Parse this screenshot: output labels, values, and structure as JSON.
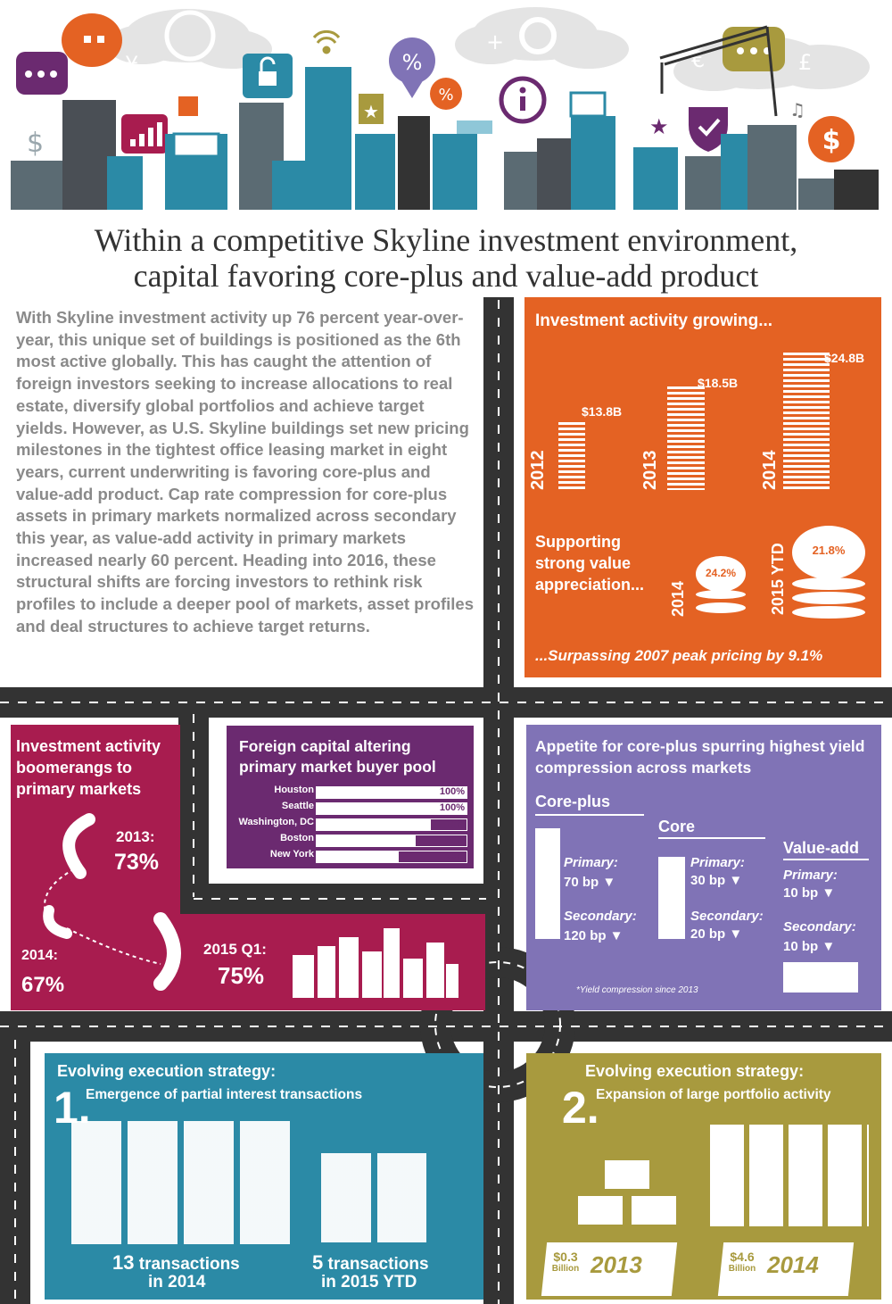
{
  "title": {
    "line1": "Within a competitive Skyline investment environment,",
    "line2": "capital favoring core-plus and value-add product"
  },
  "intro_text": "With Skyline investment activity up 76 percent year-over-year, this unique set of buildings is positioned as the 6th most active globally. This has caught the attention of foreign investors seeking to increase allocations to real estate, diversify global portfolios and achieve target yields. However, as U.S. Skyline buildings set new pricing milestones in the tightest office leasing market in eight years, current underwriting is favoring core-plus and value-add product. Cap rate compression for core-plus assets in primary markets normalized across secondary this year, as value-add activity in primary markets increased nearly 60 percent. Heading into 2016, these structural shifts are forcing investors to rethink risk profiles to include a deeper pool of markets, asset profiles and deal structures to achieve target returns.",
  "colors": {
    "orange": "#e46223",
    "crimson": "#a81c4f",
    "purple": "#6b2a70",
    "lavender": "#8073b6",
    "teal": "#2b8aa6",
    "olive": "#a89a3e",
    "road": "#333333"
  },
  "investment": {
    "heading": "Investment activity growing...",
    "years": [
      {
        "year": "2012",
        "amount": "$13.8B",
        "value": 13.8
      },
      {
        "year": "2013",
        "amount": "$18.5B",
        "value": 18.5
      },
      {
        "year": "2014",
        "amount": "$24.8B",
        "value": 24.8
      }
    ],
    "appreciation_label": "Supporting strong value appreciation...",
    "appreciation": [
      {
        "year": "2014",
        "pct": "24.2%"
      },
      {
        "year": "2015 YTD",
        "pct": "21.8%"
      }
    ],
    "footer": "...Surpassing 2007 peak pricing by 9.1%"
  },
  "boomerang": {
    "heading": "Investment activity boomerangs to primary markets",
    "points": [
      {
        "label": "2013:",
        "value": "73%"
      },
      {
        "label": "2014:",
        "value": "67%"
      },
      {
        "label": "2015 Q1:",
        "value": "75%"
      }
    ]
  },
  "foreign": {
    "heading": "Foreign capital altering primary market buyer pool",
    "rows": [
      {
        "city": "Houston",
        "pct": "100%",
        "value": 100
      },
      {
        "city": "Seattle",
        "pct": "100%",
        "value": 100
      },
      {
        "city": "Washington, DC",
        "pct": "76%",
        "value": 76
      },
      {
        "city": "Boston",
        "pct": "66%",
        "value": 66
      },
      {
        "city": "New York",
        "pct": "55%",
        "value": 55
      }
    ]
  },
  "yield": {
    "heading": "Appetite for core-plus spurring highest yield compression across markets",
    "groups": [
      {
        "name": "Core-plus",
        "primary_label": "Primary:",
        "primary": "70 bp ▼",
        "secondary_label": "Secondary:",
        "secondary": "120 bp ▼"
      },
      {
        "name": "Core",
        "primary_label": "Primary:",
        "primary": "30 bp ▼",
        "secondary_label": "Secondary:",
        "secondary": "20 bp ▼"
      },
      {
        "name": "Value-add",
        "primary_label": "Primary:",
        "primary": "10 bp ▼",
        "secondary_label": "Secondary:",
        "secondary": "10 bp ▼"
      }
    ],
    "footnote": "*Yield compression since 2013"
  },
  "strategy1": {
    "heading": "Evolving execution strategy:",
    "number": "1.",
    "subheading": "Emergence of partial interest transactions",
    "left_count": "13",
    "left_label": "transactions",
    "left_period": "in 2014",
    "right_count": "5",
    "right_label": "transactions",
    "right_period": "in 2015 YTD"
  },
  "strategy2": {
    "heading": "Evolving execution strategy:",
    "number": "2.",
    "subheading": "Expansion of large portfolio activity",
    "bags": [
      {
        "amount": "$0.3",
        "unit": "Billion",
        "year": "2013"
      },
      {
        "amount": "$4.6",
        "unit": "Billion",
        "year": "2014"
      }
    ]
  }
}
